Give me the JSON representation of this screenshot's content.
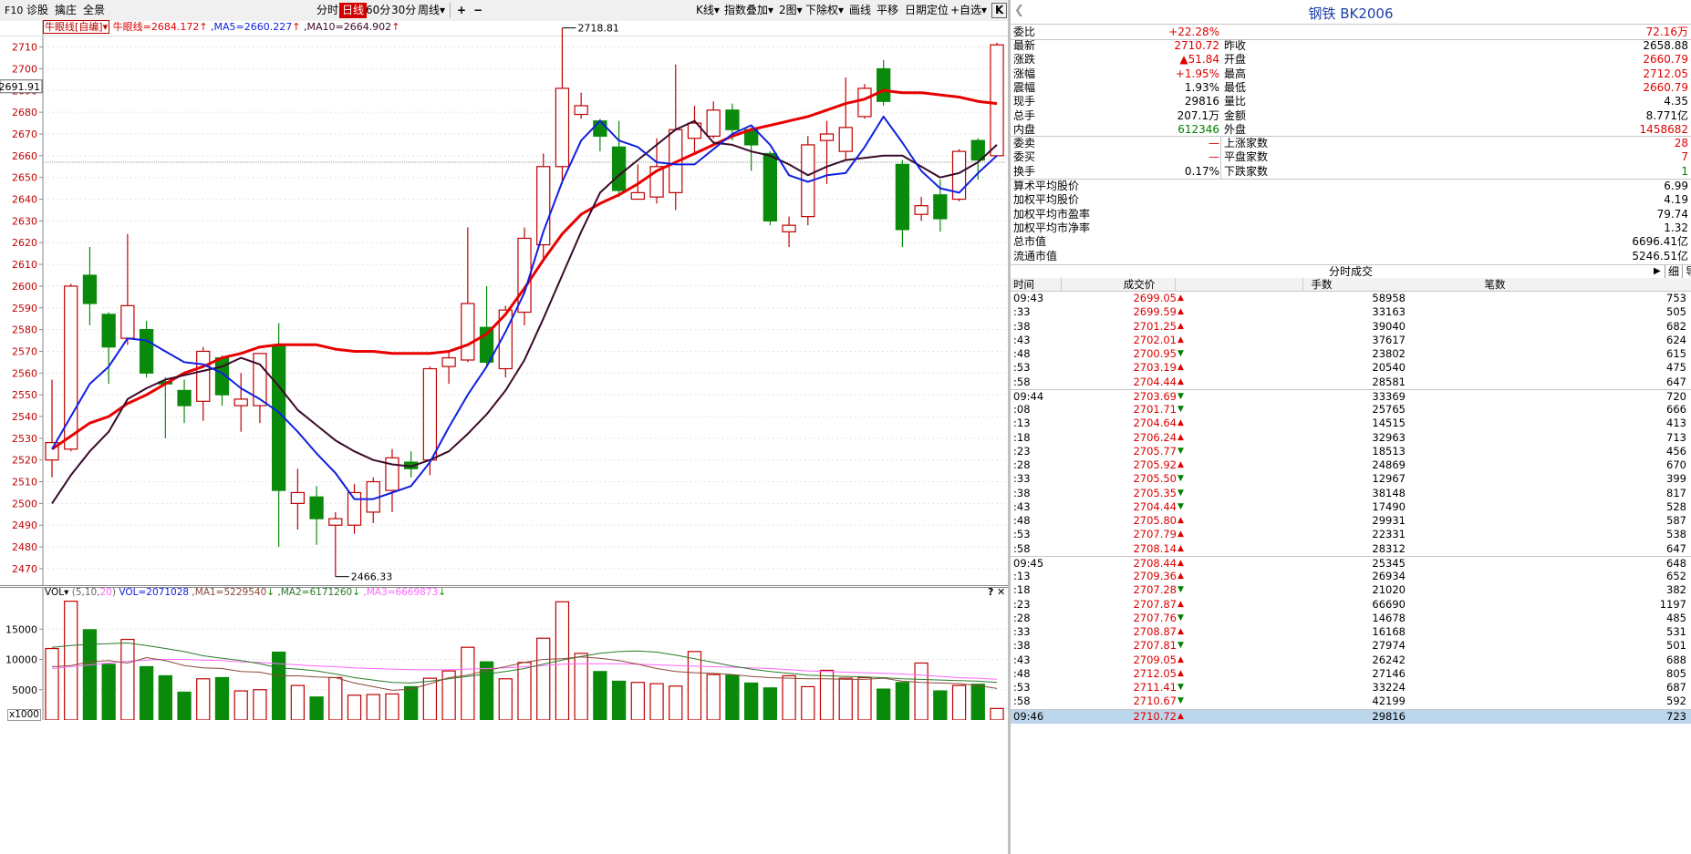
{
  "toolbar": {
    "items": [
      "F10",
      "诊股",
      "擒庄",
      "全景",
      "分时",
      "日线",
      "60分",
      "30分",
      "周线▾",
      "+",
      "−",
      "K线▾",
      "指数叠加▾",
      "2图▾",
      "下除权▾",
      "画线",
      "平移",
      "日期定位",
      "+自选▾",
      "K"
    ]
  },
  "legend": {
    "indicator": "牛眼线[自编]▾",
    "niuyan": "牛眼线=2684.172",
    "ma5": ",MA5=2660.227",
    "ma10": ",MA10=2664.902",
    "arrow": "↑"
  },
  "price_cursor_label": "2691.91",
  "annotations": {
    "high": "2718.81",
    "low": "2466.33"
  },
  "vol_legend": {
    "vol": "VOL▾",
    "params_open": "(5,10,",
    "params_20": "20",
    "params_close": ")",
    "vol_value": "VOL=2071028",
    "ma1": ",MA1=5229540",
    "ma2": ",MA2=6171260",
    "ma3": ",MA3=6669873",
    "down": "↓",
    "help": "?",
    "close": "✕",
    "multiplier": "x1000"
  },
  "chart_data": {
    "type": "candlestick",
    "ylim": [
      2462,
      2722
    ],
    "yticks": [
      2470,
      2480,
      2490,
      2500,
      2510,
      2520,
      2530,
      2540,
      2550,
      2560,
      2570,
      2580,
      2590,
      2600,
      2610,
      2620,
      2630,
      2640,
      2650,
      2660,
      2670,
      2680,
      2690,
      2700,
      2710
    ],
    "candles": [
      {
        "o": 2520,
        "c": 2528,
        "h": 2557,
        "l": 2512
      },
      {
        "o": 2525,
        "c": 2600,
        "h": 2601,
        "l": 2524
      },
      {
        "o": 2605,
        "c": 2592,
        "h": 2618,
        "l": 2582
      },
      {
        "o": 2587,
        "c": 2572,
        "h": 2588,
        "l": 2555
      },
      {
        "o": 2576,
        "c": 2591,
        "h": 2624,
        "l": 2573
      },
      {
        "o": 2580,
        "c": 2560,
        "h": 2584,
        "l": 2558
      },
      {
        "o": 2556,
        "c": 2555,
        "h": 2558,
        "l": 2530
      },
      {
        "o": 2552,
        "c": 2545,
        "h": 2557,
        "l": 2537
      },
      {
        "o": 2547,
        "c": 2570,
        "h": 2572,
        "l": 2538
      },
      {
        "o": 2567,
        "c": 2550,
        "h": 2568,
        "l": 2545
      },
      {
        "o": 2545,
        "c": 2548,
        "h": 2560,
        "l": 2533
      },
      {
        "o": 2545,
        "c": 2569,
        "h": 2569,
        "l": 2537
      },
      {
        "o": 2573,
        "c": 2506,
        "h": 2583,
        "l": 2480
      },
      {
        "o": 2500,
        "c": 2505,
        "h": 2516,
        "l": 2488
      },
      {
        "o": 2503,
        "c": 2493,
        "h": 2508,
        "l": 2481
      },
      {
        "o": 2490,
        "c": 2493,
        "h": 2496,
        "l": 2466.33
      },
      {
        "o": 2490,
        "c": 2505,
        "h": 2509,
        "l": 2486
      },
      {
        "o": 2496,
        "c": 2510,
        "h": 2512,
        "l": 2491
      },
      {
        "o": 2506,
        "c": 2521,
        "h": 2525,
        "l": 2496
      },
      {
        "o": 2519,
        "c": 2516,
        "h": 2524,
        "l": 2512
      },
      {
        "o": 2520,
        "c": 2562,
        "h": 2563,
        "l": 2513
      },
      {
        "o": 2563,
        "c": 2567,
        "h": 2570,
        "l": 2555
      },
      {
        "o": 2566,
        "c": 2592,
        "h": 2627,
        "l": 2565
      },
      {
        "o": 2581,
        "c": 2565,
        "h": 2600,
        "l": 2563
      },
      {
        "o": 2562,
        "c": 2589,
        "h": 2591,
        "l": 2558
      },
      {
        "o": 2588,
        "c": 2622,
        "h": 2627,
        "l": 2582
      },
      {
        "o": 2619,
        "c": 2655,
        "h": 2661,
        "l": 2613
      },
      {
        "o": 2655,
        "c": 2691,
        "h": 2718.81,
        "l": 2647
      },
      {
        "o": 2679,
        "c": 2683,
        "h": 2689,
        "l": 2677
      },
      {
        "o": 2676,
        "c": 2669,
        "h": 2677,
        "l": 2662
      },
      {
        "o": 2664,
        "c": 2644,
        "h": 2676,
        "l": 2641
      },
      {
        "o": 2640,
        "c": 2643,
        "h": 2656,
        "l": 2640
      },
      {
        "o": 2641,
        "c": 2655,
        "h": 2668,
        "l": 2638
      },
      {
        "o": 2643,
        "c": 2672,
        "h": 2702,
        "l": 2635
      },
      {
        "o": 2668,
        "c": 2675,
        "h": 2683,
        "l": 2661
      },
      {
        "o": 2669,
        "c": 2681,
        "h": 2685,
        "l": 2668
      },
      {
        "o": 2681,
        "c": 2672,
        "h": 2684,
        "l": 2667
      },
      {
        "o": 2672,
        "c": 2665,
        "h": 2673,
        "l": 2653
      },
      {
        "o": 2661,
        "c": 2630,
        "h": 2662,
        "l": 2628
      },
      {
        "o": 2625,
        "c": 2628,
        "h": 2632,
        "l": 2618
      },
      {
        "o": 2632,
        "c": 2665,
        "h": 2669,
        "l": 2628
      },
      {
        "o": 2667,
        "c": 2670,
        "h": 2676,
        "l": 2647
      },
      {
        "o": 2662,
        "c": 2673,
        "h": 2696,
        "l": 2658
      },
      {
        "o": 2678,
        "c": 2691,
        "h": 2693,
        "l": 2677
      },
      {
        "o": 2700,
        "c": 2685,
        "h": 2704,
        "l": 2683
      },
      {
        "o": 2656,
        "c": 2626,
        "h": 2658,
        "l": 2618
      },
      {
        "o": 2633,
        "c": 2637,
        "h": 2641,
        "l": 2630
      },
      {
        "o": 2642,
        "c": 2631,
        "h": 2649,
        "l": 2625
      },
      {
        "o": 2640,
        "c": 2662,
        "h": 2663,
        "l": 2639
      },
      {
        "o": 2667,
        "c": 2658,
        "h": 2668,
        "l": 2649
      },
      {
        "o": 2660,
        "c": 2711,
        "h": 2712,
        "l": 2660
      }
    ],
    "niuyan_line": [
      2525,
      2531,
      2537,
      2540,
      2546,
      2550,
      2555,
      2560,
      2563,
      2567,
      2569,
      2572,
      2573,
      2573,
      2573,
      2571,
      2570,
      2570,
      2569,
      2569,
      2569,
      2570,
      2573,
      2578,
      2587,
      2599,
      2612,
      2624,
      2633,
      2638,
      2642,
      2647,
      2653,
      2657,
      2661,
      2665,
      2669,
      2672,
      2674,
      2676,
      2678,
      2681,
      2684,
      2686,
      2690,
      2689,
      2689,
      2688,
      2687,
      2685,
      2684
    ],
    "ma5_line": [
      2525,
      2540,
      2555,
      2563,
      2576,
      2575,
      2570,
      2565,
      2564,
      2560,
      2553,
      2548,
      2542,
      2533,
      2523,
      2514,
      2502,
      2502,
      2505,
      2508,
      2519,
      2535,
      2550,
      2563,
      2579,
      2597,
      2625,
      2648,
      2667,
      2676,
      2667,
      2664,
      2657,
      2656,
      2656,
      2663,
      2670,
      2674,
      2665,
      2651,
      2648,
      2651,
      2652,
      2664,
      2678,
      2666,
      2653,
      2645,
      2643,
      2652,
      2660
    ],
    "ma10_line": [
      2500,
      2513,
      2524,
      2533,
      2548,
      2553,
      2557,
      2559,
      2561,
      2563,
      2567,
      2564,
      2554,
      2543,
      2536,
      2529,
      2524,
      2520,
      2518,
      2517,
      2520,
      2524,
      2532,
      2541,
      2552,
      2566,
      2585,
      2605,
      2625,
      2643,
      2651,
      2658,
      2665,
      2672,
      2676,
      2666,
      2665,
      2662,
      2660,
      2656,
      2651,
      2655,
      2658,
      2659,
      2660,
      2660,
      2655,
      2650,
      2652,
      2657,
      2665
    ],
    "vol_ylim": [
      0,
      20000
    ],
    "vol_yticks": [
      5000,
      10000,
      15000
    ],
    "volumes": [
      11800,
      19600,
      14900,
      9200,
      13300,
      8800,
      7300,
      4600,
      6800,
      7000,
      4800,
      5000,
      11200,
      5700,
      3800,
      7000,
      4100,
      4200,
      4300,
      5500,
      6900,
      8100,
      12000,
      9600,
      6800,
      9500,
      13500,
      19500,
      11000,
      8000,
      6400,
      6200,
      6000,
      5600,
      11300,
      7500,
      7400,
      6100,
      5300,
      7300,
      5500,
      8200,
      6900,
      7000,
      5100,
      6200,
      9400,
      4800,
      5700,
      5900,
      1900
    ],
    "vol_ma1": [
      8800,
      9000,
      9600,
      9800,
      9400,
      10300,
      9800,
      9000,
      8600,
      8500,
      8000,
      7900,
      7300,
      7300,
      7100,
      7000,
      6100,
      5500,
      4900,
      5100,
      6000,
      7000,
      7400,
      8200,
      8800,
      9500,
      10000,
      10100,
      10400,
      10200,
      9800,
      9200,
      8500,
      8000,
      7800,
      7700,
      7500,
      7200,
      7000,
      6900,
      6800,
      6800,
      6700,
      6700,
      6900,
      6400,
      6200,
      6100,
      6000,
      5700,
      5200
    ],
    "vol_ma2": [
      12000,
      12300,
      12500,
      12600,
      12700,
      12300,
      11800,
      11300,
      10600,
      10200,
      9800,
      9300,
      8600,
      8400,
      8100,
      7600,
      7000,
      6600,
      6200,
      6100,
      6400,
      6800,
      7200,
      7600,
      8000,
      8500,
      9200,
      9900,
      10500,
      11000,
      11300,
      11400,
      11200,
      10700,
      10100,
      9500,
      8900,
      8400,
      8000,
      7700,
      7400,
      7300,
      7200,
      7100,
      7000,
      6800,
      6700,
      6600,
      6500,
      6400,
      6200
    ],
    "vol_ma3": [
      8500,
      8800,
      9100,
      9400,
      9700,
      9900,
      10000,
      10000,
      9900,
      9800,
      9600,
      9500,
      9300,
      9100,
      8900,
      8800,
      8600,
      8500,
      8400,
      8300,
      8300,
      8300,
      8400,
      8500,
      8600,
      8800,
      9000,
      9200,
      9300,
      9300,
      9300,
      9200,
      9100,
      9000,
      8900,
      8800,
      8700,
      8600,
      8500,
      8300,
      8100,
      8000,
      7900,
      7800,
      7700,
      7600,
      7400,
      7200,
      7000,
      6900,
      6700
    ]
  },
  "quote": {
    "title": "钢铁  BK2006",
    "wb_label": "委比",
    "wb_pct": "+22.28%",
    "wb_val": "72.16万",
    "rows": [
      {
        "l1": "最新",
        "v1": "2710.72",
        "c1": "red",
        "l2": "昨收",
        "v2": "2658.88",
        "c2": "black"
      },
      {
        "l1": "涨跌",
        "v1": "▲51.84",
        "c1": "red",
        "l2": "开盘",
        "v2": "2660.79",
        "c2": "red"
      },
      {
        "l1": "涨幅",
        "v1": "+1.95%",
        "c1": "red",
        "l2": "最高",
        "v2": "2712.05",
        "c2": "red"
      },
      {
        "l1": "震幅",
        "v1": "1.93%",
        "c1": "black",
        "l2": "最低",
        "v2": "2660.79",
        "c2": "red"
      },
      {
        "l1": "现手",
        "v1": "29816",
        "c1": "black",
        "l2": "量比",
        "v2": "4.35",
        "c2": "black"
      },
      {
        "l1": "总手",
        "v1": "207.1万",
        "c1": "black",
        "l2": "金额",
        "v2": "8.771亿",
        "c2": "black"
      },
      {
        "l1": "内盘",
        "v1": "612346",
        "c1": "green",
        "l2": "外盘",
        "v2": "1458682",
        "c2": "red"
      }
    ],
    "rows2": [
      {
        "l1": "委卖",
        "v1": "—",
        "c1": "red",
        "l2": "上涨家数",
        "v2": "28",
        "c2": "red"
      },
      {
        "l1": "委买",
        "v1": "—",
        "c1": "red",
        "l2": "平盘家数",
        "v2": "7",
        "c2": "red"
      },
      {
        "l1": "换手",
        "v1": "0.17%",
        "c1": "black",
        "l2": "下跌家数",
        "v2": "1",
        "c2": "green"
      }
    ],
    "stats": [
      {
        "l": "算术平均股价",
        "v": "6.99"
      },
      {
        "l": "加权平均股价",
        "v": "4.19"
      },
      {
        "l": "加权平均市盈率",
        "v": "79.74"
      },
      {
        "l": "加权平均市净率",
        "v": "1.32"
      },
      {
        "l": "总市值",
        "v": "6696.41亿"
      },
      {
        "l": "流通市值",
        "v": "5246.51亿"
      }
    ]
  },
  "trades": {
    "header_title": "分时成交",
    "btn_play": "▶",
    "btn_detail": "细",
    "btn_export": "导出",
    "columns": [
      "时间",
      "成交价",
      "手数",
      "笔数"
    ],
    "rows": [
      {
        "t": "09:43",
        "p": "2699.05",
        "d": "up",
        "v": "58958",
        "n": "753"
      },
      {
        "t": ":33",
        "p": "2699.59",
        "d": "up",
        "v": "33163",
        "n": "505"
      },
      {
        "t": ":38",
        "p": "2701.25",
        "d": "up",
        "v": "39040",
        "n": "682"
      },
      {
        "t": ":43",
        "p": "2702.01",
        "d": "up",
        "v": "37617",
        "n": "624"
      },
      {
        "t": ":48",
        "p": "2700.95",
        "d": "down",
        "v": "23802",
        "n": "615"
      },
      {
        "t": ":53",
        "p": "2703.19",
        "d": "up",
        "v": "20540",
        "n": "475"
      },
      {
        "t": ":58",
        "p": "2704.44",
        "d": "up",
        "v": "28581",
        "n": "647"
      },
      {
        "t": "09:44",
        "p": "2703.69",
        "d": "down",
        "v": "33369",
        "n": "720"
      },
      {
        "t": ":08",
        "p": "2701.71",
        "d": "down",
        "v": "25765",
        "n": "666"
      },
      {
        "t": ":13",
        "p": "2704.64",
        "d": "up",
        "v": "14515",
        "n": "413"
      },
      {
        "t": ":18",
        "p": "2706.24",
        "d": "up",
        "v": "32963",
        "n": "713"
      },
      {
        "t": ":23",
        "p": "2705.77",
        "d": "down",
        "v": "18513",
        "n": "456"
      },
      {
        "t": ":28",
        "p": "2705.92",
        "d": "up",
        "v": "24869",
        "n": "670"
      },
      {
        "t": ":33",
        "p": "2705.50",
        "d": "down",
        "v": "12967",
        "n": "399"
      },
      {
        "t": ":38",
        "p": "2705.35",
        "d": "down",
        "v": "38148",
        "n": "817"
      },
      {
        "t": ":43",
        "p": "2704.44",
        "d": "down",
        "v": "17490",
        "n": "528"
      },
      {
        "t": ":48",
        "p": "2705.80",
        "d": "up",
        "v": "29931",
        "n": "587"
      },
      {
        "t": ":53",
        "p": "2707.79",
        "d": "up",
        "v": "22331",
        "n": "538"
      },
      {
        "t": ":58",
        "p": "2708.14",
        "d": "up",
        "v": "28312",
        "n": "647"
      },
      {
        "t": "09:45",
        "p": "2708.44",
        "d": "up",
        "v": "25345",
        "n": "648"
      },
      {
        "t": ":13",
        "p": "2709.36",
        "d": "up",
        "v": "26934",
        "n": "652"
      },
      {
        "t": ":18",
        "p": "2707.28",
        "d": "down",
        "v": "21020",
        "n": "382"
      },
      {
        "t": ":23",
        "p": "2707.87",
        "d": "up",
        "v": "66690",
        "n": "1197"
      },
      {
        "t": ":28",
        "p": "2707.76",
        "d": "down",
        "v": "14678",
        "n": "485"
      },
      {
        "t": ":33",
        "p": "2708.87",
        "d": "up",
        "v": "16168",
        "n": "531"
      },
      {
        "t": ":38",
        "p": "2707.81",
        "d": "down",
        "v": "27974",
        "n": "501"
      },
      {
        "t": ":43",
        "p": "2709.05",
        "d": "up",
        "v": "26242",
        "n": "688"
      },
      {
        "t": ":48",
        "p": "2712.05",
        "d": "up",
        "v": "27146",
        "n": "805"
      },
      {
        "t": ":53",
        "p": "2711.41",
        "d": "down",
        "v": "33224",
        "n": "687"
      },
      {
        "t": ":58",
        "p": "2710.67",
        "d": "down",
        "v": "42199",
        "n": "592"
      },
      {
        "t": "09:46",
        "p": "2710.72",
        "d": "up",
        "v": "29816",
        "n": "723"
      }
    ]
  },
  "colors": {
    "up": "#c00000",
    "down": "#0a8a0a",
    "niuyan": "#e80000",
    "ma5": "#1020e0",
    "ma10": "#3a0a2a",
    "vol_ma1": "#8a4a3a",
    "vol_ma2": "#2a7a2a",
    "vol_ma3": "#ff66ff"
  }
}
